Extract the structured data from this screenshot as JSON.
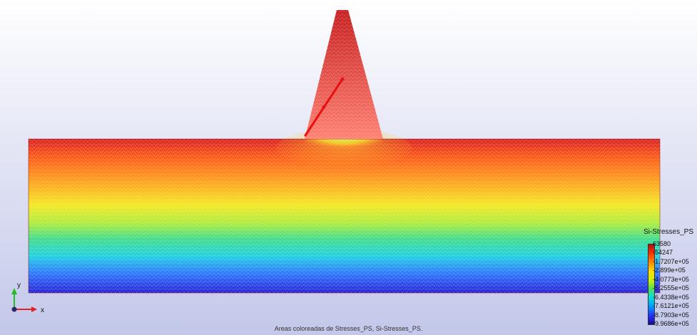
{
  "viewport": {
    "caption": "Areas coloreadas de Stresses_PS, Si-Stresses_PS."
  },
  "axes_triad": {
    "y_label": "y",
    "x_label": "x",
    "y_color": "#22bb22",
    "x_color": "#e02222"
  },
  "legend": {
    "title": "Si-Stresses_PS",
    "ticks": [
      "63580",
      "-54247",
      "-1.7207e+05",
      "-2.899e+05",
      "-4.0773e+05",
      "-5.2555e+05",
      "-6.4338e+05",
      "-7.6121e+05",
      "-8.7903e+05",
      "-9.9686e+05"
    ],
    "colors": [
      "#b01010",
      "#ff3300",
      "#ff8800",
      "#ffdd00",
      "#ccf000",
      "#55e055",
      "#00dddd",
      "#0099ff",
      "#2233ff",
      "#1a0aa0"
    ]
  },
  "model": {
    "arrow_color": "#e81010"
  }
}
